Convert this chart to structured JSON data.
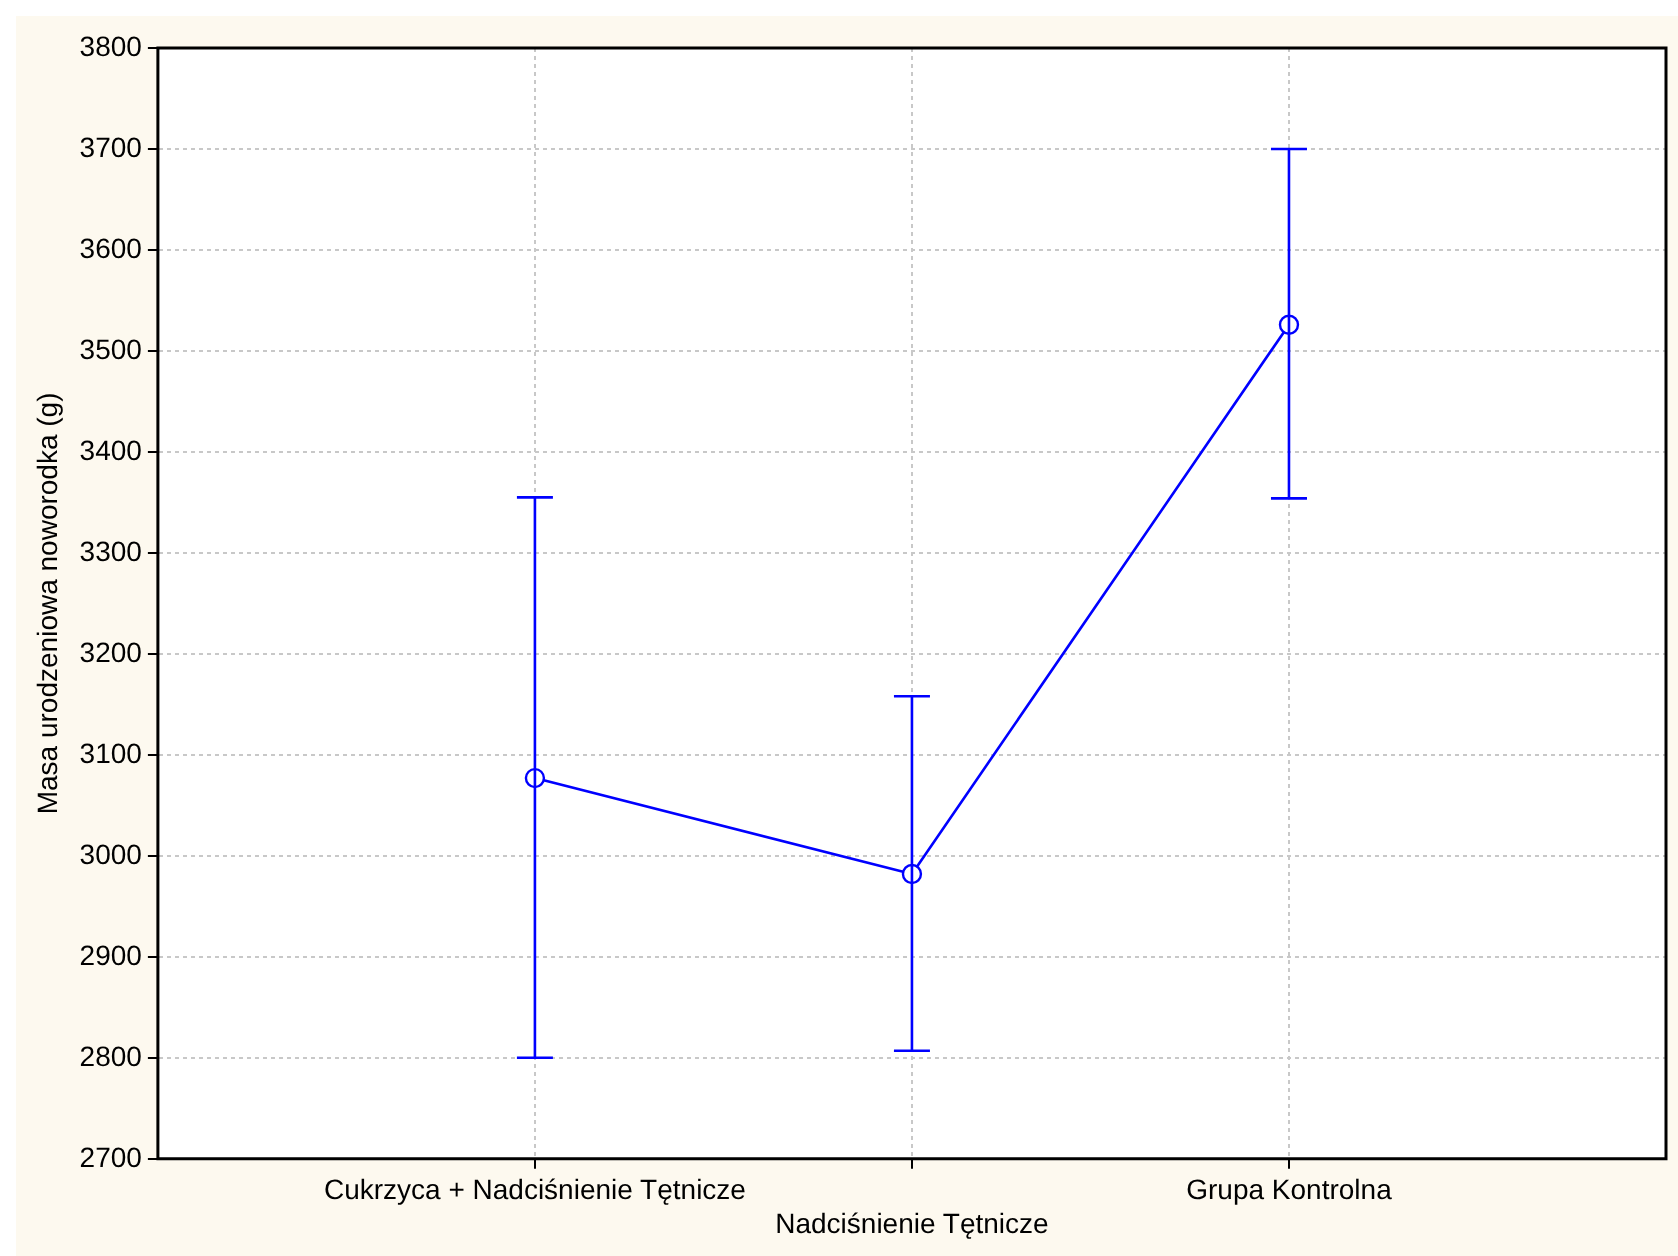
{
  "chart_data": {
    "type": "line",
    "ylabel": "Masa urodzeniowa noworodka (g)",
    "categories": [
      "Cukrzyca + Nadciśnienie Tętnicze",
      "Nadciśnienie Tętnicze",
      "Grupa Kontrolna"
    ],
    "series": [
      {
        "color": "#0000ff",
        "values": [
          3077,
          2982,
          3526
        ],
        "errors": [
          [
            2800,
            3355
          ],
          [
            2807,
            3158
          ],
          [
            3354,
            3700
          ]
        ]
      }
    ],
    "ylim": [
      2700,
      3800
    ],
    "yticks": [
      2700,
      2800,
      2900,
      3000,
      3100,
      3200,
      3300,
      3400,
      3500,
      3600,
      3700,
      3800
    ],
    "grid": true,
    "marker": "circle",
    "line_style": "solid",
    "legend": false
  }
}
